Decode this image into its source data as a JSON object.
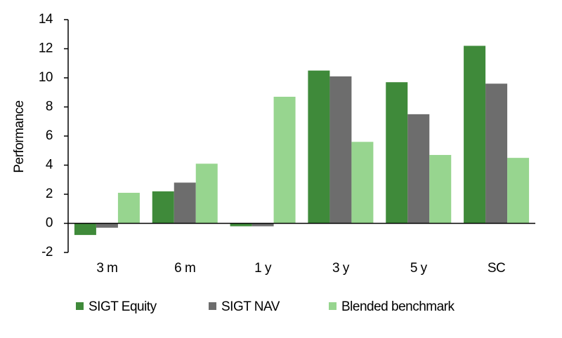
{
  "chart_data": {
    "type": "bar",
    "y_label": "Performance",
    "categories": [
      "3 m",
      "6 m",
      "1 y",
      "3 y",
      "5 y",
      "SC"
    ],
    "series": [
      {
        "name": "SIGT Equity",
        "color": "#3f8a3a",
        "values": [
          -0.8,
          2.2,
          -0.2,
          10.5,
          9.7,
          12.2
        ]
      },
      {
        "name": "SIGT NAV",
        "color": "#6d6d6d",
        "values": [
          -0.3,
          2.8,
          -0.2,
          10.1,
          7.5,
          9.6
        ]
      },
      {
        "name": "Blended benchmark",
        "color": "#97d58f",
        "values": [
          2.1,
          4.1,
          8.7,
          5.6,
          4.7,
          4.5
        ]
      }
    ],
    "ylim": [
      -2,
      14
    ],
    "yticks": [
      -2,
      0,
      2,
      4,
      6,
      8,
      10,
      12,
      14
    ],
    "grid": false
  }
}
